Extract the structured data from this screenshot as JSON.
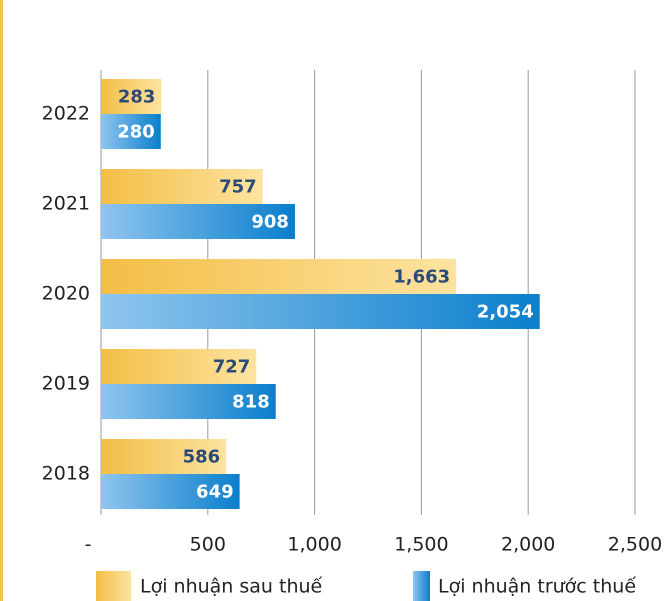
{
  "chart_data": {
    "type": "bar",
    "orientation": "horizontal",
    "categories": [
      "2022",
      "2021",
      "2020",
      "2019",
      "2018"
    ],
    "series": [
      {
        "name": "Lợi nhuận sau thuế",
        "color": "#f3be45",
        "values": [
          283,
          757,
          1663,
          727,
          586
        ],
        "value_labels": [
          "283",
          "757",
          "1,663",
          "727",
          "586"
        ]
      },
      {
        "name": "Lợi nhuận trước thuế",
        "color": "#0a7fcc",
        "values": [
          280,
          908,
          2054,
          818,
          649
        ],
        "value_labels": [
          "280",
          "908",
          "2,054",
          "818",
          "649"
        ]
      }
    ],
    "xlim": [
      0,
      2500
    ],
    "xticks": [
      {
        "value": 0,
        "label": "-"
      },
      500,
      {
        "value": 1000,
        "label": "1,000"
      },
      {
        "value": 1500,
        "label": "1,500"
      },
      {
        "value": 2000,
        "label": "2,000"
      },
      {
        "value": 2500,
        "label": "2,500"
      }
    ],
    "grid": true
  }
}
